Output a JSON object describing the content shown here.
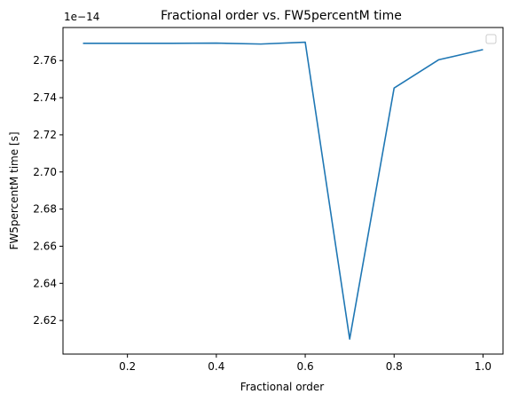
{
  "chart_data": {
    "type": "line",
    "title": "Fractional order vs. FW5percentM time",
    "xlabel": "Fractional order",
    "ylabel": "FW5percentM time [s]",
    "offset_label": "1e−14",
    "xlim": [
      0.055,
      1.045
    ],
    "ylim": [
      2.6019,
      2.7778
    ],
    "x_ticks": [
      0.2,
      0.4,
      0.6,
      0.8,
      1.0
    ],
    "x_tick_labels": [
      "0.2",
      "0.4",
      "0.6",
      "0.8",
      "1.0"
    ],
    "y_ticks": [
      2.62,
      2.64,
      2.66,
      2.68,
      2.7,
      2.72,
      2.74,
      2.76
    ],
    "y_tick_labels": [
      "2.62",
      "2.64",
      "2.66",
      "2.68",
      "2.70",
      "2.72",
      "2.74",
      "2.76"
    ],
    "grid": false,
    "legend": "top-right (empty)",
    "series": [
      {
        "color": "#1f77b4",
        "x": [
          0.1,
          0.2,
          0.3,
          0.4,
          0.5,
          0.6,
          0.7,
          0.8,
          0.9,
          1.0
        ],
        "y": [
          2.7693,
          2.7693,
          2.7693,
          2.7694,
          2.7689,
          2.7699,
          2.61,
          2.7452,
          2.7604,
          2.7659
        ]
      }
    ]
  }
}
